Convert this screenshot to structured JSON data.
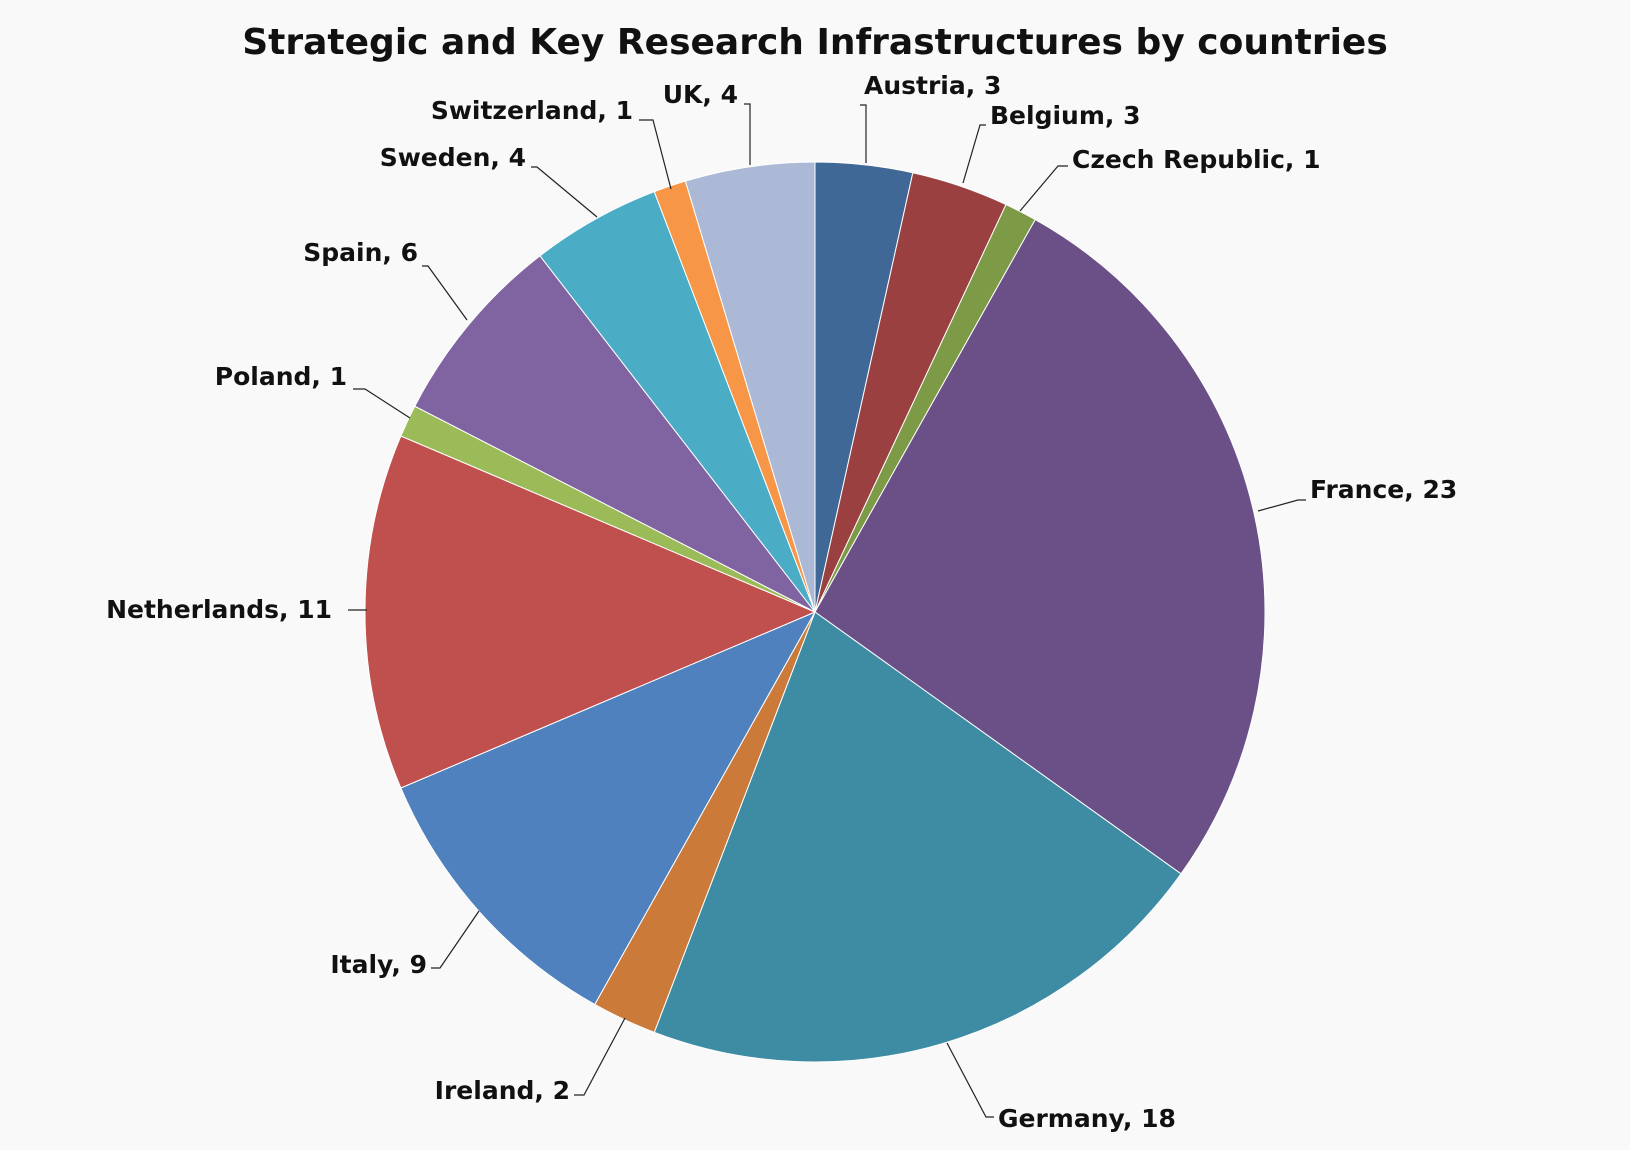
{
  "chart_data": {
    "type": "pie",
    "title": "Strategic and Key Research Infrastructures by countries",
    "categories": [
      "Austria",
      "Belgium",
      "Czech Republic",
      "France",
      "Germany",
      "Ireland",
      "Italy",
      "Netherlands",
      "Poland",
      "Spain",
      "Sweden",
      "Switzerland",
      "UK"
    ],
    "values": [
      3,
      3,
      1,
      23,
      18,
      2,
      9,
      11,
      1,
      6,
      4,
      1,
      4
    ],
    "labels": [
      "Austria, 3",
      "Belgium, 3",
      "Czech Republic, 1",
      "France, 23",
      "Germany, 18",
      "Ireland, 2",
      "Italy, 9",
      "Netherlands, 11",
      "Poland, 1",
      "Spain, 6",
      "Sweden, 4",
      "Switzerland, 1",
      "UK, 4"
    ],
    "colors": [
      "#3f6896",
      "#9b4040",
      "#7d9b46",
      "#6a5087",
      "#3d8ca3",
      "#cc7a3a",
      "#4e81bd",
      "#c0504d",
      "#9bbb59",
      "#8064a2",
      "#4bacc6",
      "#f79646",
      "#abb9d7"
    ],
    "start_angle": "12 o'clock",
    "direction": "clockwise",
    "legend": "none",
    "data_labels": "outside with leader lines"
  }
}
